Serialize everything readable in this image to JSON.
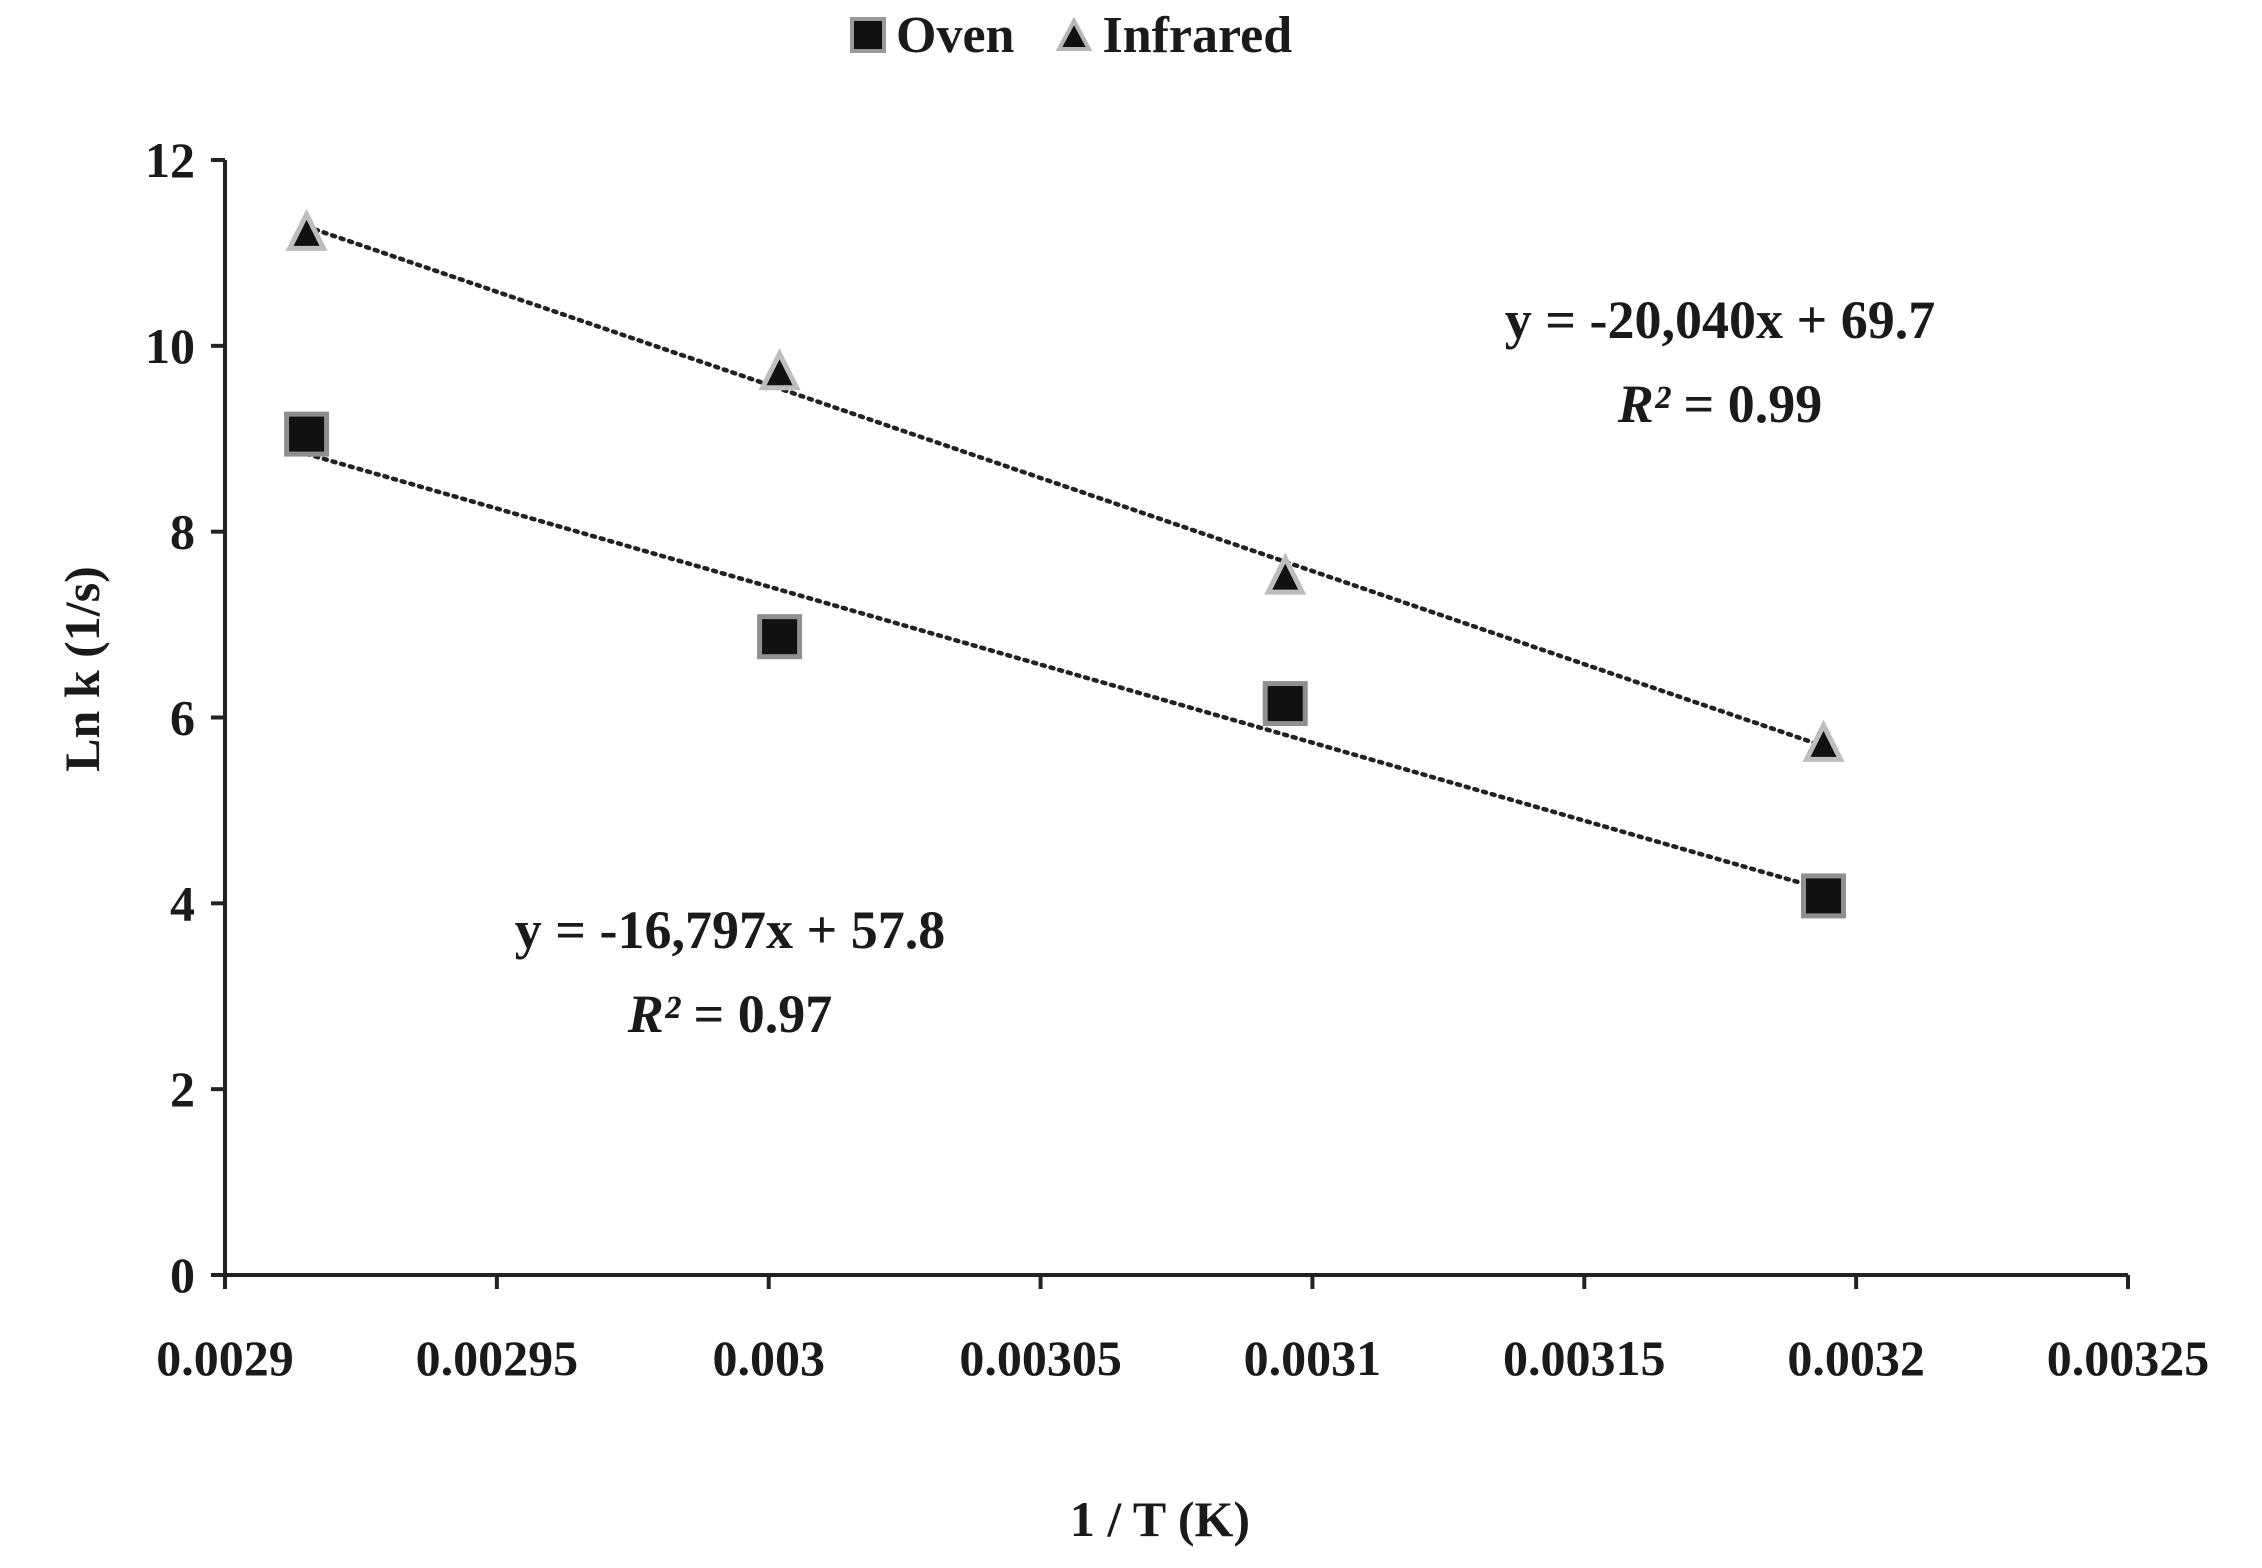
{
  "chart_data": {
    "type": "scatter",
    "title": "",
    "xlabel": "1 / T (K)",
    "ylabel": "Ln k (1/s)",
    "xlim": [
      0.0029,
      0.00325
    ],
    "ylim": [
      0,
      12
    ],
    "x_ticks": [
      0.0029,
      0.00295,
      0.003,
      0.00305,
      0.0031,
      0.00315,
      0.0032,
      0.00325
    ],
    "x_tick_labels": [
      "0.0029",
      "0.00295",
      "0.003",
      "0.00305",
      "0.0031",
      "0.00315",
      "0.0032",
      "0.00325"
    ],
    "y_ticks": [
      0,
      2,
      4,
      6,
      8,
      10,
      12
    ],
    "y_tick_labels": [
      "0",
      "2",
      "4",
      "6",
      "8",
      "10",
      "12"
    ],
    "grid": false,
    "legend_position": "top",
    "series": [
      {
        "name": "Oven",
        "marker": "square",
        "color": "#000000",
        "x": [
          0.002915,
          0.003002,
          0.003095,
          0.003194
        ],
        "y": [
          9.05,
          6.87,
          6.15,
          4.08
        ],
        "trendline": {
          "slope": -16797,
          "intercept": 57.8,
          "x_range": [
            0.002915,
            0.003194
          ]
        },
        "equation": "y = -16,797x + 57.8",
        "r2_label": "R²",
        "r2_value": "= 0.97"
      },
      {
        "name": "Infrared",
        "marker": "triangle",
        "color": "#000000",
        "x": [
          0.002915,
          0.003002,
          0.003095,
          0.003194
        ],
        "y": [
          11.2,
          9.7,
          7.5,
          5.7
        ],
        "trendline": {
          "slope": -20040,
          "intercept": 69.7,
          "x_range": [
            0.002915,
            0.003194
          ]
        },
        "equation": "y = -20,040x + 69.7",
        "r2_label": "R²",
        "r2_value": "= 0.99"
      }
    ]
  }
}
